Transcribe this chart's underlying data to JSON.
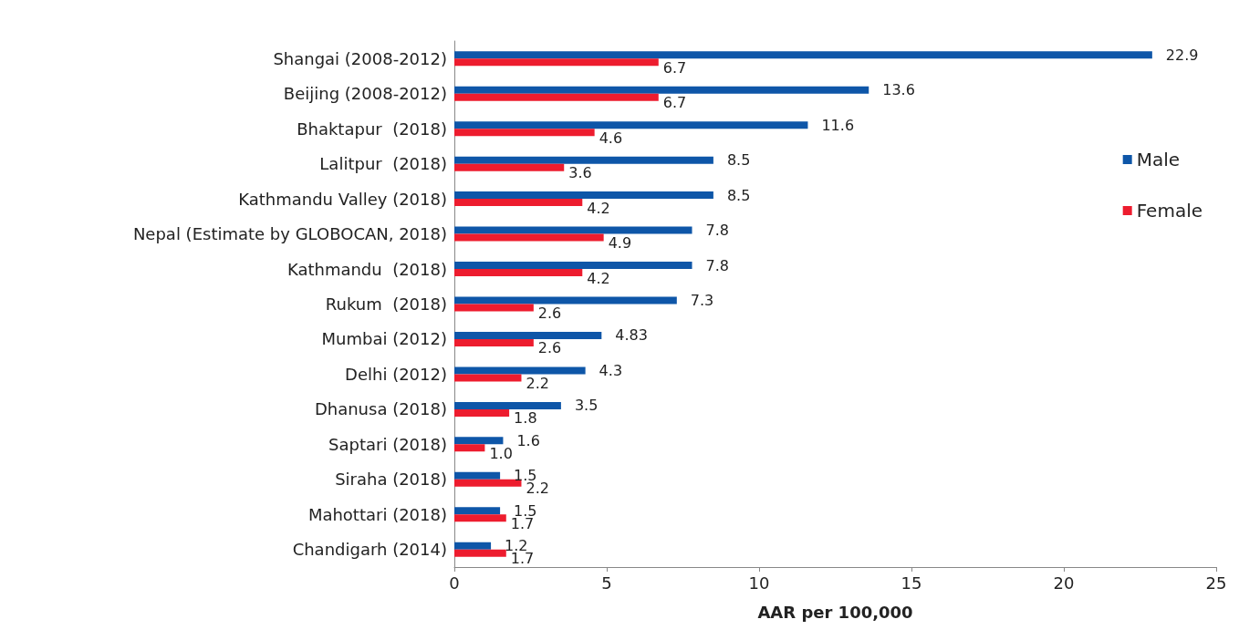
{
  "chart_data": {
    "type": "bar",
    "orientation": "horizontal",
    "xlabel": "AAR per 100,000",
    "categories": [
      "Shangai (2008-2012)",
      "Beijing (2008-2012)",
      "Bhaktapur  (2018)",
      "Lalitpur  (2018)",
      "Kathmandu Valley (2018)",
      "Nepal (Estimate by GLOBOCAN, 2018)",
      "Kathmandu  (2018)",
      "Rukum  (2018)",
      "Mumbai (2012)",
      "Delhi (2012)",
      "Dhanusa (2018)",
      "Saptari (2018)",
      "Siraha (2018)",
      "Mahottari (2018)",
      "Chandigarh (2014)"
    ],
    "series": [
      {
        "name": "Male",
        "color": "#0e56a8",
        "values": [
          22.9,
          13.6,
          11.6,
          8.5,
          8.5,
          7.8,
          7.8,
          7.3,
          4.83,
          4.3,
          3.5,
          1.6,
          1.5,
          1.5,
          1.2
        ],
        "value_labels": [
          "22.9",
          "13.6",
          "11.6",
          "8.5",
          "8.5",
          "7.8",
          "7.8",
          "7.3",
          "4.83",
          "4.3",
          "3.5",
          "1.6",
          "1.5",
          "1.5",
          "1.2"
        ]
      },
      {
        "name": "Female",
        "color": "#ed1c2e",
        "values": [
          6.7,
          6.7,
          4.6,
          3.6,
          4.2,
          4.9,
          4.2,
          2.6,
          2.6,
          2.2,
          1.8,
          1.0,
          2.2,
          1.7,
          1.7
        ],
        "value_labels": [
          "6.7",
          "6.7",
          "4.6",
          "3.6",
          "4.2",
          "4.9",
          "4.2",
          "2.6",
          "2.6",
          "2.2",
          "1.8",
          "1.0",
          "2.2",
          "1.7",
          "1.7"
        ]
      }
    ],
    "xlim": [
      0,
      25
    ],
    "xticks": [
      0,
      5,
      10,
      15,
      20,
      25
    ],
    "grid": false,
    "legend": "right"
  }
}
